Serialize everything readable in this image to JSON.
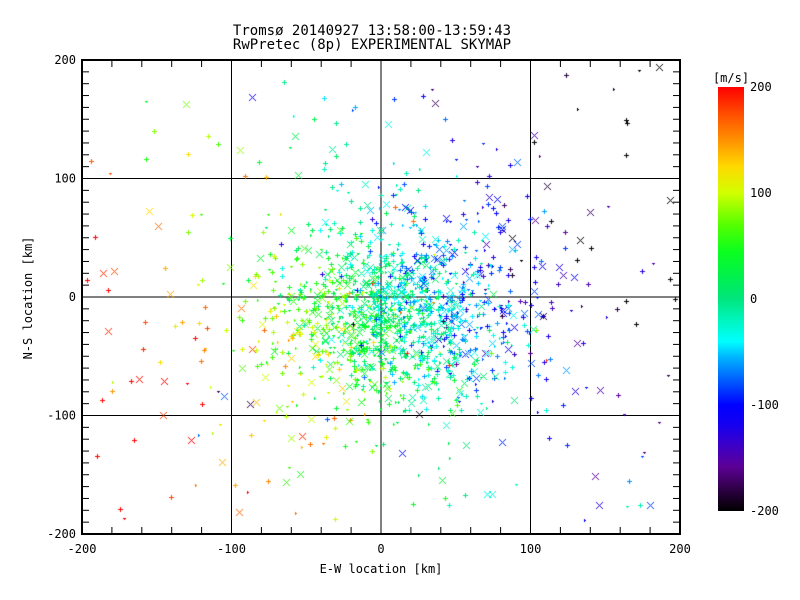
{
  "title": {
    "line1": "Tromsø 20140927 13:58:00-13:59:43",
    "line2": "RwPretec (8p) EXPERIMENTAL SKYMAP"
  },
  "axes": {
    "x": {
      "label": "E-W location [km]",
      "min": -200,
      "max": 200,
      "major_ticks": [
        -200,
        -100,
        0,
        100,
        200
      ],
      "tick_labels": [
        "-200",
        "-100",
        "0",
        "100",
        "200"
      ],
      "minor_step": 20,
      "grid_at": [
        -100,
        0,
        100
      ]
    },
    "y": {
      "label": "N-S location [km]",
      "min": -200,
      "max": 200,
      "major_ticks": [
        200,
        100,
        0,
        -100,
        -200
      ],
      "tick_labels": [
        "200",
        "100",
        "0",
        "-100",
        "-200"
      ],
      "minor_step": 10,
      "grid_at": [
        -100,
        0,
        100
      ]
    }
  },
  "colorbar": {
    "unit_label": "[m/s]",
    "min": -200,
    "max": 200,
    "tick_values": [
      200,
      100,
      0,
      -100,
      -200
    ],
    "tick_labels": [
      "200",
      "100",
      "0",
      "-100",
      "-200"
    ],
    "stops": [
      [
        -200,
        "#000000"
      ],
      [
        -178,
        "#31004a"
      ],
      [
        -158,
        "#5c0096"
      ],
      [
        -138,
        "#3c00c8"
      ],
      [
        -118,
        "#1400f0"
      ],
      [
        -100,
        "#0000ff"
      ],
      [
        -75,
        "#0064ff"
      ],
      [
        -55,
        "#00b4ff"
      ],
      [
        -40,
        "#00ffff"
      ],
      [
        -20,
        "#00f5be"
      ],
      [
        0,
        "#00e67d"
      ],
      [
        20,
        "#00f050"
      ],
      [
        45,
        "#0cff1e"
      ],
      [
        70,
        "#55ff00"
      ],
      [
        100,
        "#d2ff00"
      ],
      [
        125,
        "#ffd900"
      ],
      [
        150,
        "#ff9100"
      ],
      [
        175,
        "#ff4d00"
      ],
      [
        200,
        "#ff0000"
      ]
    ]
  },
  "chart_data": {
    "type": "scatter",
    "title": "Tromsø 20140927 13:58:00-13:59:43",
    "subtitle": "RwPretec (8p) EXPERIMENTAL SKYMAP",
    "xlabel": "E-W location [km]",
    "ylabel": "N-S location [km]",
    "color_label": "[m/s]",
    "xlim": [
      -200,
      200
    ],
    "ylim": [
      -200,
      200
    ],
    "vlim": [
      -200,
      200
    ],
    "grid": true,
    "n_points_estimate": 1650,
    "description": "Meteor echo radial velocities: dense green/cyan cluster near origin, positive (red/orange/yellow) velocities to the west, negative (blue/purple/black) to the east and north; sporadic outliers (red crosses east, black/dark points center).",
    "point_model": {
      "seed": 987,
      "velocity": {
        "coef_x": -1.05,
        "coef_y": -0.4,
        "noise_sigma": 38,
        "outlier_fraction": 0.04,
        "clamp": [
          -200,
          200
        ]
      },
      "marker_mix": {
        "plus": 0.48,
        "dot": 0.3,
        "cross": 0.22
      },
      "clusters": [
        {
          "shape": "gauss",
          "cx": 12,
          "cy": -15,
          "sx": 40,
          "sy": 38,
          "count": 1150
        },
        {
          "shape": "gauss",
          "cx": 5,
          "cy": -10,
          "sx": 70,
          "sy": 62,
          "count": 260
        },
        {
          "shape": "gauss",
          "cx": 0,
          "cy": 0,
          "sx": 105,
          "sy": 92,
          "count": 160
        },
        {
          "shape": "uniform",
          "x": [
            -195,
            195
          ],
          "y": [
            -195,
            195
          ],
          "count": 85
        }
      ]
    }
  }
}
